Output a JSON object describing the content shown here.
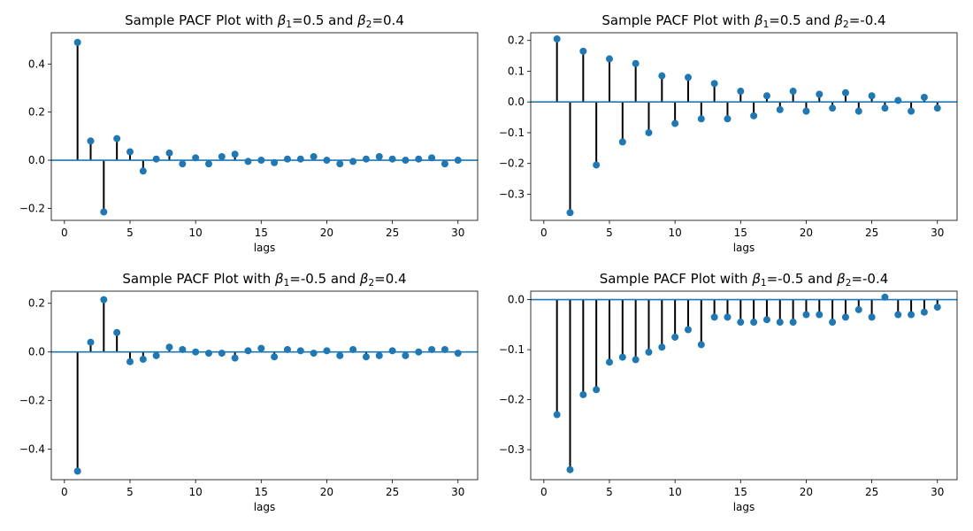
{
  "figure": {
    "background": "#ffffff",
    "stem_color": "#000000",
    "marker_color": "#1f77b4",
    "baseline_color": "#1f77b4"
  },
  "chart_data": [
    {
      "type": "stem",
      "title_parts": {
        "prefix": "Sample PACF Plot with ",
        "b1_symbol": "β",
        "b1_sub": "1",
        "b1_val": "=0.5 and ",
        "b2_symbol": "β",
        "b2_sub": "2",
        "b2_val": "=0.4"
      },
      "xlabel": "lags",
      "xlim": [
        -1,
        31.5
      ],
      "ylim": [
        -0.25,
        0.53
      ],
      "xticks": [
        0,
        5,
        10,
        15,
        20,
        25,
        30
      ],
      "yticks": [
        -0.2,
        0.0,
        0.2,
        0.4
      ],
      "ytick_labels": [
        "−0.2",
        "0.0",
        "0.2",
        "0.4"
      ],
      "x": [
        1,
        2,
        3,
        4,
        5,
        6,
        7,
        8,
        9,
        10,
        11,
        12,
        13,
        14,
        15,
        16,
        17,
        18,
        19,
        20,
        21,
        22,
        23,
        24,
        25,
        26,
        27,
        28,
        29,
        30
      ],
      "values": [
        0.49,
        0.08,
        -0.215,
        0.09,
        0.035,
        -0.045,
        0.005,
        0.03,
        -0.015,
        0.01,
        -0.015,
        0.015,
        0.025,
        -0.005,
        0.0,
        -0.01,
        0.005,
        0.005,
        0.015,
        0.0,
        -0.015,
        -0.005,
        0.005,
        0.015,
        0.005,
        0.0,
        0.005,
        0.01,
        -0.015,
        0.0
      ]
    },
    {
      "type": "stem",
      "title_parts": {
        "prefix": "Sample PACF Plot with ",
        "b1_symbol": "β",
        "b1_sub": "1",
        "b1_val": "=0.5 and ",
        "b2_symbol": "β",
        "b2_sub": "2",
        "b2_val": "=-0.4"
      },
      "xlabel": "lags",
      "xlim": [
        -1,
        31.5
      ],
      "ylim": [
        -0.385,
        0.225
      ],
      "xticks": [
        0,
        5,
        10,
        15,
        20,
        25,
        30
      ],
      "yticks": [
        -0.3,
        -0.2,
        -0.1,
        0.0,
        0.1,
        0.2
      ],
      "ytick_labels": [
        "−0.3",
        "−0.2",
        "−0.1",
        "0.0",
        "0.1",
        "0.2"
      ],
      "x": [
        1,
        2,
        3,
        4,
        5,
        6,
        7,
        8,
        9,
        10,
        11,
        12,
        13,
        14,
        15,
        16,
        17,
        18,
        19,
        20,
        21,
        22,
        23,
        24,
        25,
        26,
        27,
        28,
        29,
        30
      ],
      "values": [
        0.205,
        -0.36,
        0.165,
        -0.205,
        0.14,
        -0.13,
        0.125,
        -0.1,
        0.085,
        -0.07,
        0.08,
        -0.055,
        0.06,
        -0.055,
        0.035,
        -0.045,
        0.02,
        -0.025,
        0.035,
        -0.03,
        0.025,
        -0.02,
        0.03,
        -0.03,
        0.02,
        -0.02,
        0.005,
        -0.03,
        0.015,
        -0.02
      ]
    },
    {
      "type": "stem",
      "title_parts": {
        "prefix": "Sample PACF Plot with ",
        "b1_symbol": "β",
        "b1_sub": "1",
        "b1_val": "=-0.5 and ",
        "b2_symbol": "β",
        "b2_sub": "2",
        "b2_val": "=0.4"
      },
      "xlabel": "lags",
      "xlim": [
        -1,
        31.5
      ],
      "ylim": [
        -0.525,
        0.25
      ],
      "xticks": [
        0,
        5,
        10,
        15,
        20,
        25,
        30
      ],
      "yticks": [
        -0.4,
        -0.2,
        0.0,
        0.2
      ],
      "ytick_labels": [
        "−0.4",
        "−0.2",
        "0.0",
        "0.2"
      ],
      "x": [
        1,
        2,
        3,
        4,
        5,
        6,
        7,
        8,
        9,
        10,
        11,
        12,
        13,
        14,
        15,
        16,
        17,
        18,
        19,
        20,
        21,
        22,
        23,
        24,
        25,
        26,
        27,
        28,
        29,
        30
      ],
      "values": [
        -0.49,
        0.04,
        0.215,
        0.08,
        -0.04,
        -0.03,
        -0.015,
        0.02,
        0.01,
        0.0,
        -0.005,
        -0.005,
        -0.025,
        0.005,
        0.015,
        -0.02,
        0.01,
        0.005,
        -0.005,
        0.005,
        -0.015,
        0.01,
        -0.02,
        -0.015,
        0.005,
        -0.015,
        0.0,
        0.01,
        0.01,
        -0.005
      ]
    },
    {
      "type": "stem",
      "title_parts": {
        "prefix": "Sample PACF Plot with ",
        "b1_symbol": "β",
        "b1_sub": "1",
        "b1_val": "=-0.5 and ",
        "b2_symbol": "β",
        "b2_sub": "2",
        "b2_val": "=-0.4"
      },
      "xlabel": "lags",
      "xlim": [
        -1,
        31.5
      ],
      "ylim": [
        -0.36,
        0.017
      ],
      "xticks": [
        0,
        5,
        10,
        15,
        20,
        25,
        30
      ],
      "yticks": [
        -0.3,
        -0.2,
        -0.1,
        0.0
      ],
      "ytick_labels": [
        "−0.3",
        "−0.2",
        "−0.1",
        "0.0"
      ],
      "x": [
        1,
        2,
        3,
        4,
        5,
        6,
        7,
        8,
        9,
        10,
        11,
        12,
        13,
        14,
        15,
        16,
        17,
        18,
        19,
        20,
        21,
        22,
        23,
        24,
        25,
        26,
        27,
        28,
        29,
        30
      ],
      "values": [
        -0.23,
        -0.34,
        -0.19,
        -0.18,
        -0.125,
        -0.115,
        -0.12,
        -0.105,
        -0.095,
        -0.075,
        -0.06,
        -0.09,
        -0.035,
        -0.035,
        -0.045,
        -0.045,
        -0.04,
        -0.045,
        -0.045,
        -0.03,
        -0.03,
        -0.045,
        -0.035,
        -0.02,
        -0.035,
        0.005,
        -0.03,
        -0.03,
        -0.025,
        -0.015
      ]
    }
  ]
}
